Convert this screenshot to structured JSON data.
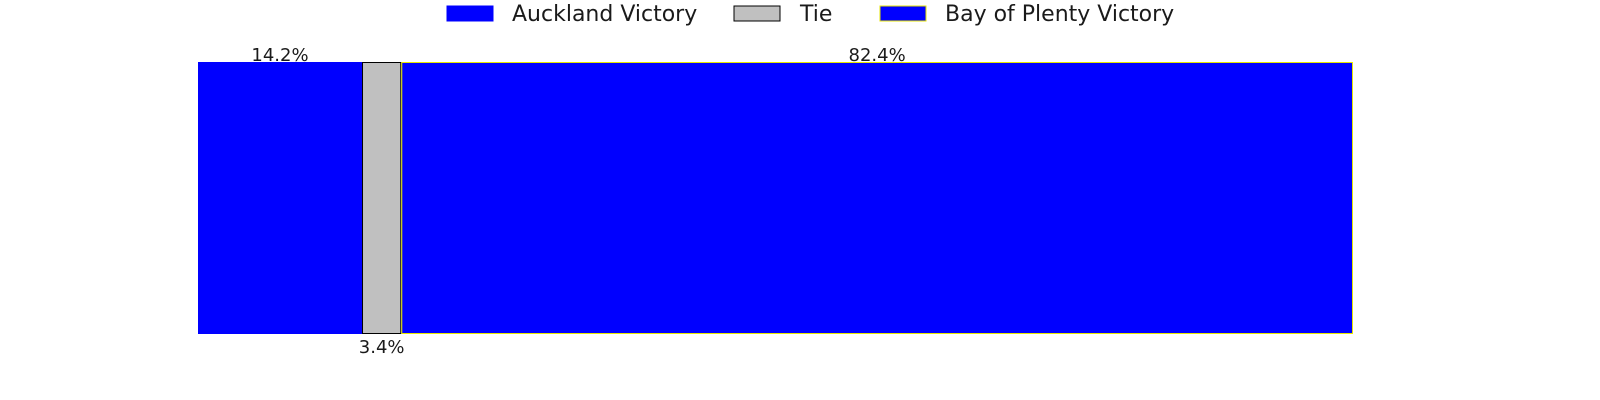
{
  "chart_data": {
    "type": "bar",
    "orientation": "horizontal-stacked",
    "categories": [
      ""
    ],
    "series": [
      {
        "name": "Auckland Victory",
        "values": [
          14.2
        ],
        "label": "14.2%",
        "color": "#0000ff",
        "edgecolor": "#0000ff"
      },
      {
        "name": "Tie",
        "values": [
          3.4
        ],
        "label": "3.4%",
        "color": "#c0c0c0",
        "edgecolor": "#000000"
      },
      {
        "name": "Bay of Plenty Victory",
        "values": [
          82.4
        ],
        "label": "82.4%",
        "color": "#0000ff",
        "edgecolor": "#e6e600"
      }
    ],
    "xlim": [
      0,
      100
    ],
    "axes_visible": false,
    "grid": false,
    "legend": {
      "position": "top-center",
      "entries": [
        "Auckland Victory",
        "Tie",
        "Bay of Plenty Victory"
      ]
    },
    "label_positions": [
      "above",
      "below",
      "above"
    ],
    "title": "",
    "xlabel": "",
    "ylabel": ""
  }
}
